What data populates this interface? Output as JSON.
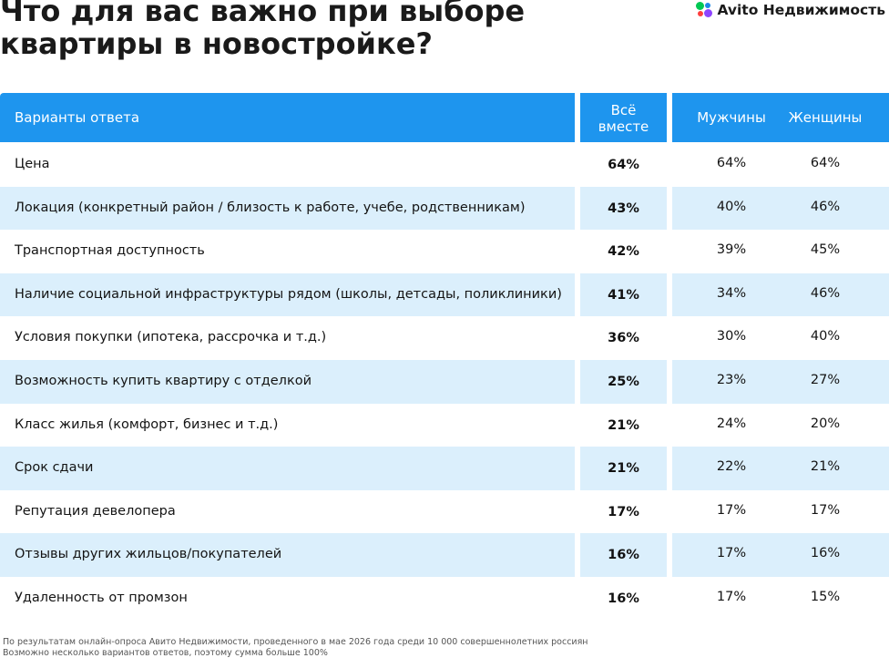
{
  "title": {
    "line1": "Что для вас важно при выборе",
    "line2": "квартиры в новостройке?"
  },
  "logo": {
    "text": "Avito Недвижимость"
  },
  "table": {
    "headers": {
      "options": "Варианты ответа",
      "all_line1": "Всё",
      "all_line2": "вместе",
      "men": "Мужчины",
      "women": "Женщины"
    },
    "rows": [
      {
        "option": "Цена",
        "all": "64%",
        "men": "64%",
        "women": "64%"
      },
      {
        "option": "Локация (конкретный район / близость к работе, учебе, родственникам)",
        "all": "43%",
        "men": "40%",
        "women": "46%"
      },
      {
        "option": "Транспортная доступность",
        "all": "42%",
        "men": "39%",
        "women": "45%"
      },
      {
        "option": "Наличие социальной инфраструктуры рядом (школы, детсады, поликлиники)",
        "all": "41%",
        "men": "34%",
        "women": "46%"
      },
      {
        "option": "Условия покупки (ипотека, рассрочка и т.д.)",
        "all": "36%",
        "men": "30%",
        "women": "40%"
      },
      {
        "option": "Возможность купить квартиру с отделкой",
        "all": "25%",
        "men": "23%",
        "women": "27%"
      },
      {
        "option": "Класс жилья (комфорт, бизнес и т.д.)",
        "all": "21%",
        "men": "24%",
        "women": "20%"
      },
      {
        "option": "Срок сдачи",
        "all": "21%",
        "men": "22%",
        "women": "21%"
      },
      {
        "option": "Репутация девелопера",
        "all": "17%",
        "men": "17%",
        "women": "17%"
      },
      {
        "option": "Отзывы других жильцов/покупателей",
        "all": "16%",
        "men": "17%",
        "women": "16%"
      },
      {
        "option": "Удаленность от промзон",
        "all": "16%",
        "men": "17%",
        "women": "15%"
      }
    ]
  },
  "footnote": {
    "line1": "По результатам онлайн-опроса Авито Недвижимости, проведенного в мае 2026 года среди 10 000 совершеннолетних россиян",
    "line2": "Возможно несколько вариантов ответов, поэтому сумма больше 100%"
  }
}
